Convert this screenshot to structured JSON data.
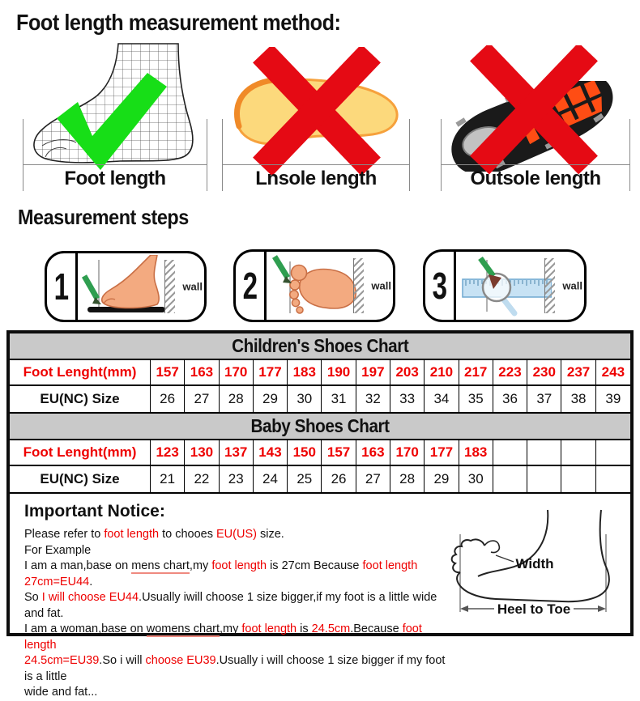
{
  "page": {
    "title": "Foot length measurement method:"
  },
  "methods": {
    "items": [
      {
        "label": "Foot length",
        "mark": "check"
      },
      {
        "label": "Lnsole length",
        "mark": "cross"
      },
      {
        "label": "Outsole length",
        "mark": "cross"
      }
    ]
  },
  "steps": {
    "heading": "Measurement steps",
    "items": [
      {
        "number": "1",
        "wall_label": "wall"
      },
      {
        "number": "2",
        "wall_label": "wall"
      },
      {
        "number": "3",
        "wall_label": "wall"
      }
    ]
  },
  "charts": [
    {
      "title": "Children's Shoes Chart",
      "rows": [
        {
          "header": "Foot Lenght(mm)",
          "style": "red",
          "values": [
            "157",
            "163",
            "170",
            "177",
            "183",
            "190",
            "197",
            "203",
            "210",
            "217",
            "223",
            "230",
            "237",
            "243"
          ]
        },
        {
          "header": "EU(NC) Size",
          "style": "black",
          "values": [
            "26",
            "27",
            "28",
            "29",
            "30",
            "31",
            "32",
            "33",
            "34",
            "35",
            "36",
            "37",
            "38",
            "39"
          ]
        }
      ]
    },
    {
      "title": "Baby Shoes Chart",
      "rows": [
        {
          "header": "Foot Lenght(mm)",
          "style": "red",
          "values": [
            "123",
            "130",
            "137",
            "143",
            "150",
            "157",
            "163",
            "170",
            "177",
            "183",
            "",
            "",
            "",
            ""
          ]
        },
        {
          "header": "EU(NC) Size",
          "style": "black",
          "values": [
            "21",
            "22",
            "23",
            "24",
            "25",
            "26",
            "27",
            "28",
            "29",
            "30",
            "",
            "",
            "",
            ""
          ]
        }
      ]
    }
  ],
  "notice": {
    "title": "Important Notice:",
    "lines": [
      [
        {
          "t": "Please refer to "
        },
        {
          "t": "foot length",
          "c": 1
        },
        {
          "t": " to chooes "
        },
        {
          "t": "EU(US)",
          "c": 1
        },
        {
          "t": " size."
        }
      ],
      [
        {
          "t": "For Example"
        }
      ],
      [
        {
          "t": "I am a man,base on "
        },
        {
          "t": "mens chart",
          "u": 1
        },
        {
          "t": ",my "
        },
        {
          "t": "foot length",
          "c": 1
        },
        {
          "t": " is 27cm Because "
        },
        {
          "t": "foot length 27cm=EU44",
          "c": 1
        },
        {
          "t": "."
        }
      ],
      [
        {
          "t": "So "
        },
        {
          "t": "I will choose EU44",
          "c": 1
        },
        {
          "t": ".Usually iwill choose 1 size bigger,if my foot is a little wide and fat."
        }
      ],
      [
        {
          "t": "I am a woman,base on "
        },
        {
          "t": "womens chart",
          "u": 1
        },
        {
          "t": ",my "
        },
        {
          "t": "foot length",
          "c": 1
        },
        {
          "t": " is "
        },
        {
          "t": "24.5cm",
          "c": 1
        },
        {
          "t": ".Because "
        },
        {
          "t": "foot length",
          "c": 1
        }
      ],
      [
        {
          "t": "24.5cm=EU39",
          "c": 1
        },
        {
          "t": ".So i will "
        },
        {
          "t": "choose EU39",
          "c": 1
        },
        {
          "t": ".Usually i will choose 1 size bigger if my foot is a little"
        }
      ],
      [
        {
          "t": "wide and fat..."
        }
      ]
    ],
    "diagram": {
      "width_label": "Width",
      "heel_label": "Heel to Toe"
    }
  },
  "colors": {
    "check_green": "#17DE17",
    "cross_red": "#e50a14",
    "table_header_bg": "#c9c9c9",
    "red_text": "#ee0000",
    "insole_fill": "#FCD97C",
    "insole_edge": "#F6A13C",
    "skin": "#F3AA80",
    "skin_outline": "#C96F45",
    "pencil_green": "#2F9E50",
    "ruler_blue": "#C7E2F4"
  }
}
